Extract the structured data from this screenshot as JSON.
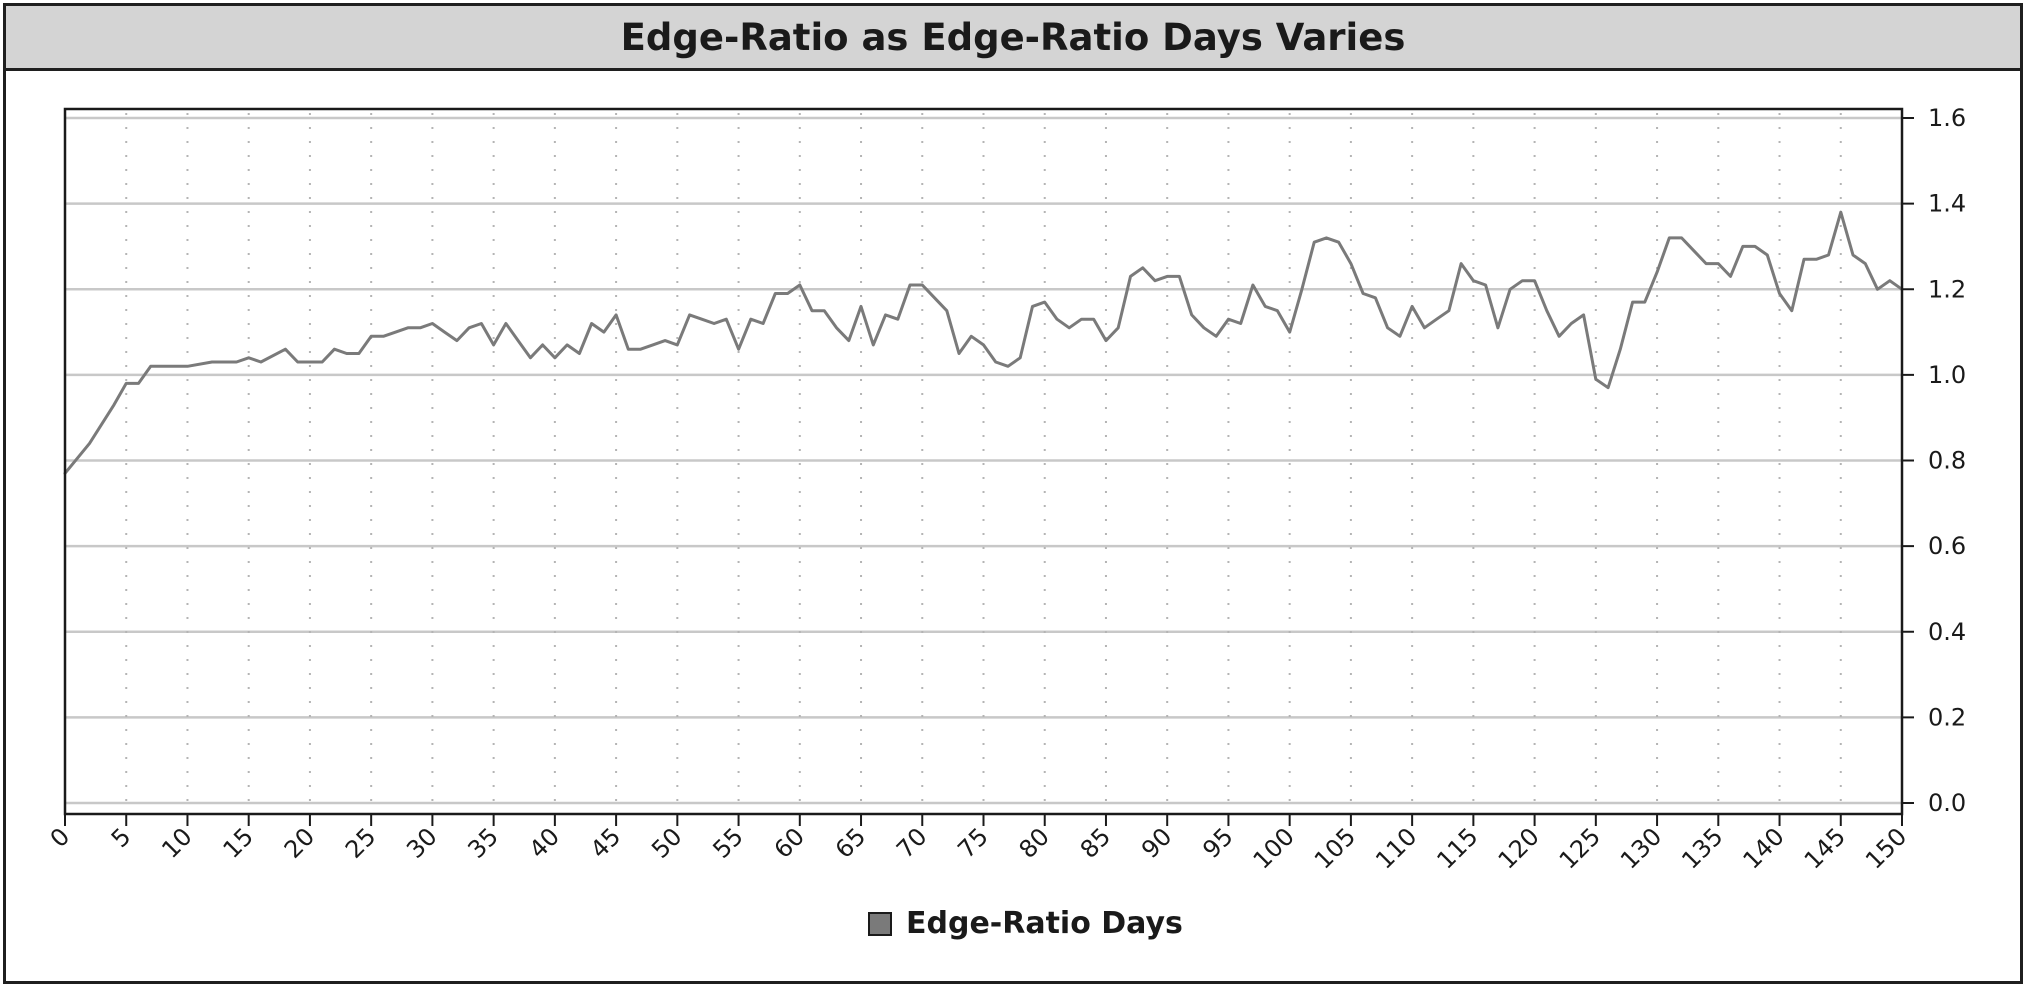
{
  "chart_data": {
    "type": "line",
    "title": "Edge-Ratio as Edge-Ratio Days Varies",
    "xlabel": "",
    "ylabel": "",
    "xlim": [
      0,
      150
    ],
    "ylim": [
      0,
      1.6
    ],
    "x_ticks": [
      0,
      5,
      10,
      15,
      20,
      25,
      30,
      35,
      40,
      45,
      50,
      55,
      60,
      65,
      70,
      75,
      80,
      85,
      90,
      95,
      100,
      105,
      110,
      115,
      120,
      125,
      130,
      135,
      140,
      145,
      150
    ],
    "y_ticks": [
      0.0,
      0.2,
      0.4,
      0.6,
      0.8,
      1.0,
      1.2,
      1.4,
      1.6
    ],
    "y_tick_labels": [
      "0.0",
      "0.2",
      "0.4",
      "0.6",
      "0.8",
      "1.0",
      "1.2",
      "1.4",
      "1.6"
    ],
    "y_axis_side": "right",
    "grid": {
      "horizontal": "solid",
      "vertical": "dotted"
    },
    "legend_position": "bottom-center",
    "series": [
      {
        "name": "Edge-Ratio Days",
        "color": "#7a7a7a",
        "x": [
          0,
          2,
          4,
          5,
          6,
          7,
          8,
          10,
          12,
          14,
          15,
          16,
          18,
          19,
          20,
          21,
          22,
          23,
          24,
          25,
          26,
          27,
          28,
          29,
          30,
          31,
          32,
          33,
          34,
          35,
          36,
          37,
          38,
          39,
          40,
          41,
          42,
          43,
          44,
          45,
          46,
          47,
          48,
          49,
          50,
          51,
          52,
          53,
          54,
          55,
          56,
          57,
          58,
          59,
          60,
          61,
          62,
          63,
          64,
          65,
          66,
          67,
          68,
          69,
          70,
          71,
          72,
          73,
          74,
          75,
          76,
          77,
          78,
          79,
          80,
          81,
          82,
          83,
          84,
          85,
          86,
          87,
          88,
          89,
          90,
          91,
          92,
          93,
          94,
          95,
          96,
          97,
          98,
          99,
          100,
          101,
          102,
          103,
          104,
          105,
          106,
          107,
          108,
          109,
          110,
          111,
          112,
          113,
          114,
          115,
          116,
          117,
          118,
          119,
          120,
          121,
          122,
          123,
          124,
          125,
          126,
          127,
          128,
          129,
          130,
          131,
          132,
          133,
          134,
          135,
          136,
          137,
          138,
          139,
          140,
          141,
          142,
          143,
          144,
          145,
          146,
          147,
          148,
          149,
          150
        ],
        "values": [
          0.77,
          0.84,
          0.93,
          0.98,
          0.98,
          1.02,
          1.02,
          1.02,
          1.03,
          1.03,
          1.04,
          1.03,
          1.06,
          1.03,
          1.03,
          1.03,
          1.06,
          1.05,
          1.05,
          1.09,
          1.09,
          1.1,
          1.11,
          1.11,
          1.12,
          1.1,
          1.08,
          1.11,
          1.12,
          1.07,
          1.12,
          1.08,
          1.04,
          1.07,
          1.04,
          1.07,
          1.05,
          1.12,
          1.1,
          1.14,
          1.06,
          1.06,
          1.07,
          1.08,
          1.07,
          1.14,
          1.13,
          1.12,
          1.13,
          1.06,
          1.13,
          1.12,
          1.19,
          1.19,
          1.21,
          1.15,
          1.15,
          1.11,
          1.08,
          1.16,
          1.07,
          1.14,
          1.13,
          1.21,
          1.21,
          1.18,
          1.15,
          1.05,
          1.09,
          1.07,
          1.03,
          1.02,
          1.04,
          1.16,
          1.17,
          1.13,
          1.11,
          1.13,
          1.13,
          1.08,
          1.11,
          1.23,
          1.25,
          1.22,
          1.23,
          1.23,
          1.14,
          1.11,
          1.09,
          1.13,
          1.12,
          1.21,
          1.16,
          1.15,
          1.1,
          1.2,
          1.31,
          1.32,
          1.31,
          1.26,
          1.19,
          1.18,
          1.11,
          1.09,
          1.16,
          1.11,
          1.13,
          1.15,
          1.26,
          1.22,
          1.21,
          1.11,
          1.2,
          1.22,
          1.22,
          1.15,
          1.09,
          1.12,
          1.14,
          0.99,
          0.97,
          1.06,
          1.17,
          1.17,
          1.24,
          1.32,
          1.32,
          1.29,
          1.26,
          1.26,
          1.23,
          1.3,
          1.3,
          1.28,
          1.19,
          1.15,
          1.27,
          1.27,
          1.28,
          1.38,
          1.28,
          1.26,
          1.2,
          1.22,
          1.2
        ]
      }
    ]
  }
}
